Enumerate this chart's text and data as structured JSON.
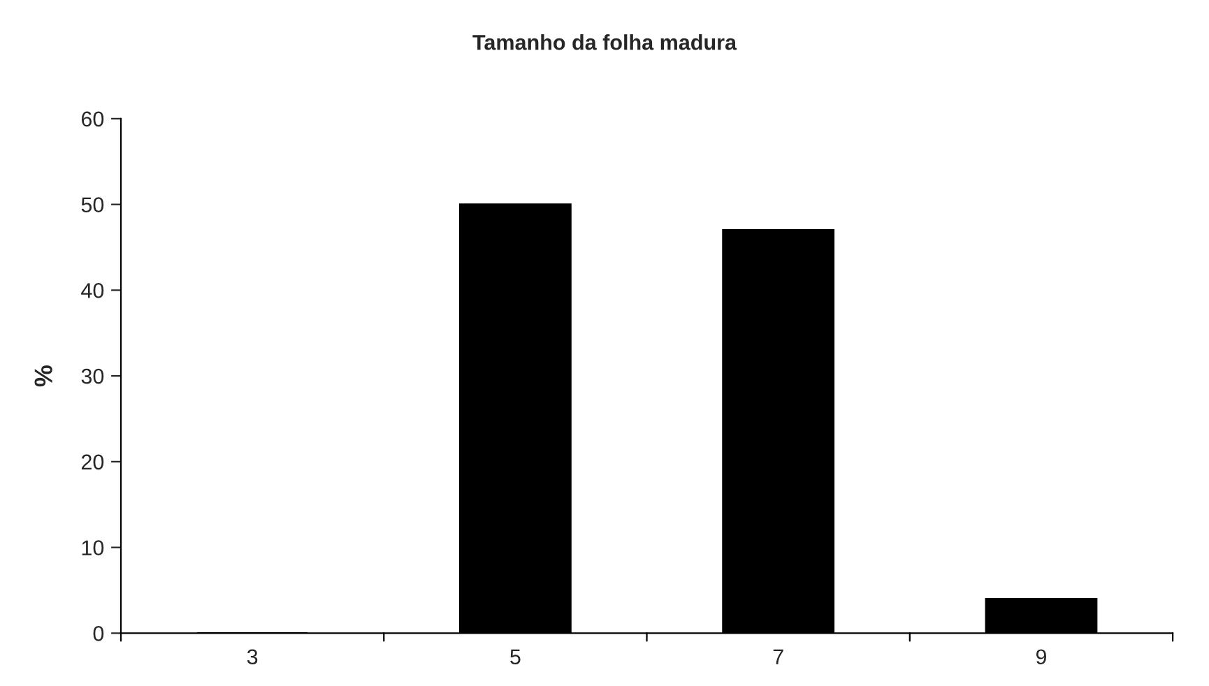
{
  "chart_data": {
    "type": "bar",
    "title": "Tamanho da folha madura",
    "ylabel": "%",
    "categories": [
      "3",
      "5",
      "7",
      "9"
    ],
    "values": [
      0,
      50,
      47,
      4
    ],
    "color": "#000000",
    "ylim": [
      0,
      60
    ],
    "yticks": [
      0,
      10,
      20,
      30,
      40,
      50,
      60
    ],
    "grid": false,
    "legend": false
  }
}
